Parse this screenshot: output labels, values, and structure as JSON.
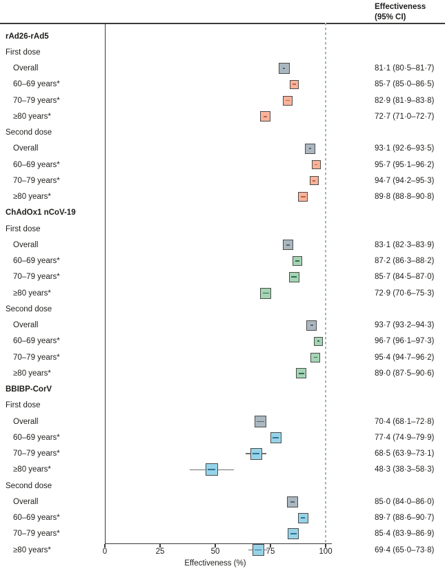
{
  "figure": {
    "column_header_line1": "Effectiveness",
    "column_header_line2": "(95% CI)"
  },
  "chart_data": {
    "type": "forest",
    "xlabel": "Effectiveness (%)",
    "x_ticks": [
      0,
      25,
      50,
      75,
      100
    ],
    "xlim": [
      0,
      100
    ],
    "reference_line_x": 100,
    "value_column_header": "Effectiveness (95% CI)",
    "colors": {
      "overall_fill": "#aab7c0",
      "overall_dash": "#58636b",
      "box_border": "#4a4a48",
      "whisker": "#6e6e6e",
      "reference_line": "#9db3ba",
      "axis": "#3a3a39"
    },
    "groups": [
      {
        "name": "rAd26-rAd5",
        "fill": "#f9b39a",
        "dash": "#bd6148",
        "doses": [
          {
            "label": "First dose",
            "rows": [
              {
                "label": "Overall",
                "type": "overall",
                "estimate": 81.1,
                "lo": 80.5,
                "hi": 81.7,
                "text": "81·1 (80·5–81·7)",
                "box_size": 16
              },
              {
                "label": "60–69 years*",
                "type": "age",
                "estimate": 85.7,
                "lo": 85.0,
                "hi": 86.5,
                "text": "85·7 (85·0–86·5)",
                "box_size": 13
              },
              {
                "label": "70–79 years*",
                "type": "age",
                "estimate": 82.9,
                "lo": 81.9,
                "hi": 83.8,
                "text": "82·9 (81·9–83·8)",
                "box_size": 14
              },
              {
                "label": "≥80 years*",
                "type": "age",
                "estimate": 72.7,
                "lo": 71.0,
                "hi": 72.7,
                "text": "72·7 (71·0–72·7)",
                "box_size": 15
              }
            ]
          },
          {
            "label": "Second dose",
            "rows": [
              {
                "label": "Overall",
                "type": "overall",
                "estimate": 93.1,
                "lo": 92.6,
                "hi": 93.5,
                "text": "93·1 (92·6–93·5)",
                "box_size": 15
              },
              {
                "label": "60–69 years*",
                "type": "age",
                "estimate": 95.7,
                "lo": 95.1,
                "hi": 96.2,
                "text": "95·7 (95·1–96·2)",
                "box_size": 13
              },
              {
                "label": "70–79 years*",
                "type": "age",
                "estimate": 94.7,
                "lo": 94.2,
                "hi": 95.3,
                "text": "94·7 (94·2–95·3)",
                "box_size": 13
              },
              {
                "label": "≥80 years*",
                "type": "age",
                "estimate": 89.8,
                "lo": 88.8,
                "hi": 90.8,
                "text": "89·8 (88·8–90·8)",
                "box_size": 14
              }
            ]
          }
        ]
      },
      {
        "name": "ChAdOx1 nCoV-19",
        "fill": "#a4d4b4",
        "dash": "#2f6a4f",
        "doses": [
          {
            "label": "First dose",
            "rows": [
              {
                "label": "Overall",
                "type": "overall",
                "estimate": 83.1,
                "lo": 82.3,
                "hi": 83.9,
                "text": "83·1 (82·3–83·9)",
                "box_size": 15
              },
              {
                "label": "60–69 years*",
                "type": "age",
                "estimate": 87.2,
                "lo": 86.3,
                "hi": 88.2,
                "text": "87·2 (86·3–88·2)",
                "box_size": 14
              },
              {
                "label": "70–79 years*",
                "type": "age",
                "estimate": 85.7,
                "lo": 84.5,
                "hi": 87.0,
                "text": "85·7 (84·5–87·0)",
                "box_size": 15
              },
              {
                "label": "≥80 years*",
                "type": "age",
                "estimate": 72.9,
                "lo": 70.6,
                "hi": 75.3,
                "text": "72·9 (70·6–75·3)",
                "box_size": 16
              }
            ]
          },
          {
            "label": "Second dose",
            "rows": [
              {
                "label": "Overall",
                "type": "overall",
                "estimate": 93.7,
                "lo": 93.2,
                "hi": 94.3,
                "text": "93·7 (93·2–94·3)",
                "box_size": 15
              },
              {
                "label": "60–69 years*",
                "type": "age",
                "estimate": 96.7,
                "lo": 96.1,
                "hi": 97.3,
                "text": "96·7 (96·1–97·3)",
                "box_size": 13
              },
              {
                "label": "70–79 years*",
                "type": "age",
                "estimate": 95.4,
                "lo": 94.7,
                "hi": 96.2,
                "text": "95·4 (94·7–96·2)",
                "box_size": 14
              },
              {
                "label": "≥80 years*",
                "type": "age",
                "estimate": 89.0,
                "lo": 87.5,
                "hi": 90.6,
                "text": "89·0 (87·5–90·6)",
                "box_size": 15
              }
            ]
          }
        ]
      },
      {
        "name": "BBIBP-CorV",
        "fill": "#97d3e8",
        "dash": "#2e7293",
        "doses": [
          {
            "label": "First dose",
            "rows": [
              {
                "label": "Overall",
                "type": "overall",
                "estimate": 70.4,
                "lo": 68.1,
                "hi": 72.8,
                "text": "70·4 (68·1–72·8)",
                "box_size": 17
              },
              {
                "label": "60–69 years*",
                "type": "age",
                "estimate": 77.4,
                "lo": 74.9,
                "hi": 79.9,
                "text": "77·4 (74·9–79·9)",
                "box_size": 16
              },
              {
                "label": "70–79 years*",
                "type": "age",
                "estimate": 68.5,
                "lo": 63.9,
                "hi": 73.1,
                "text": "68·5 (63·9–73·1)",
                "box_size": 17
              },
              {
                "label": "≥80 years*",
                "type": "age",
                "estimate": 48.3,
                "lo": 38.3,
                "hi": 58.3,
                "text": "48·3 (38·3–58·3)",
                "box_size": 18
              }
            ]
          },
          {
            "label": "Second dose",
            "rows": [
              {
                "label": "Overall",
                "type": "overall",
                "estimate": 85.0,
                "lo": 84.0,
                "hi": 86.0,
                "text": "85·0 (84·0–86·0)",
                "box_size": 16
              },
              {
                "label": "60–69 years*",
                "type": "age",
                "estimate": 89.7,
                "lo": 88.6,
                "hi": 90.7,
                "text": "89·7 (88·6–90·7)",
                "box_size": 15
              },
              {
                "label": "70–79 years*",
                "type": "age",
                "estimate": 85.4,
                "lo": 83.9,
                "hi": 86.9,
                "text": "85·4 (83·9–86·9)",
                "box_size": 16
              },
              {
                "label": "≥80 years*",
                "type": "age",
                "estimate": 69.4,
                "lo": 65.0,
                "hi": 73.8,
                "text": "69·4 (65·0–73·8)",
                "box_size": 17
              }
            ]
          }
        ]
      }
    ]
  }
}
